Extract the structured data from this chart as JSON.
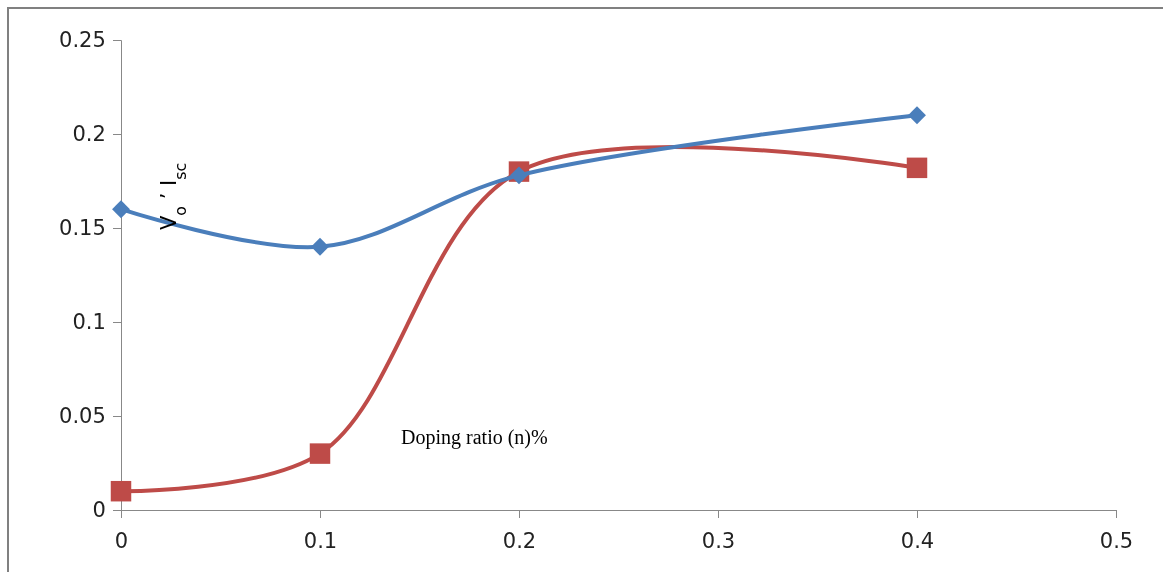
{
  "chart_data": {
    "type": "line",
    "xlabel": "Doping ratio (n)%",
    "ylabel": "V$_{o}$ ’ I$_{sc}$",
    "x": [
      0,
      0.1,
      0.2,
      0.4
    ],
    "series": [
      {
        "color": "#4a7ebb",
        "marker": "diamond",
        "values": [
          0.16,
          0.14,
          0.178,
          0.21
        ]
      },
      {
        "color": "#be4b48",
        "marker": "square",
        "values": [
          0.01,
          0.03,
          0.18,
          0.182
        ]
      }
    ],
    "xlim": [
      0,
      0.5
    ],
    "xticks": [
      0,
      0.1,
      0.2,
      0.3,
      0.4,
      0.5
    ],
    "ylim": [
      0,
      0.25
    ],
    "yticks": [
      0,
      0.05,
      0.1,
      0.15,
      0.2,
      0.25
    ],
    "grid": false
  }
}
